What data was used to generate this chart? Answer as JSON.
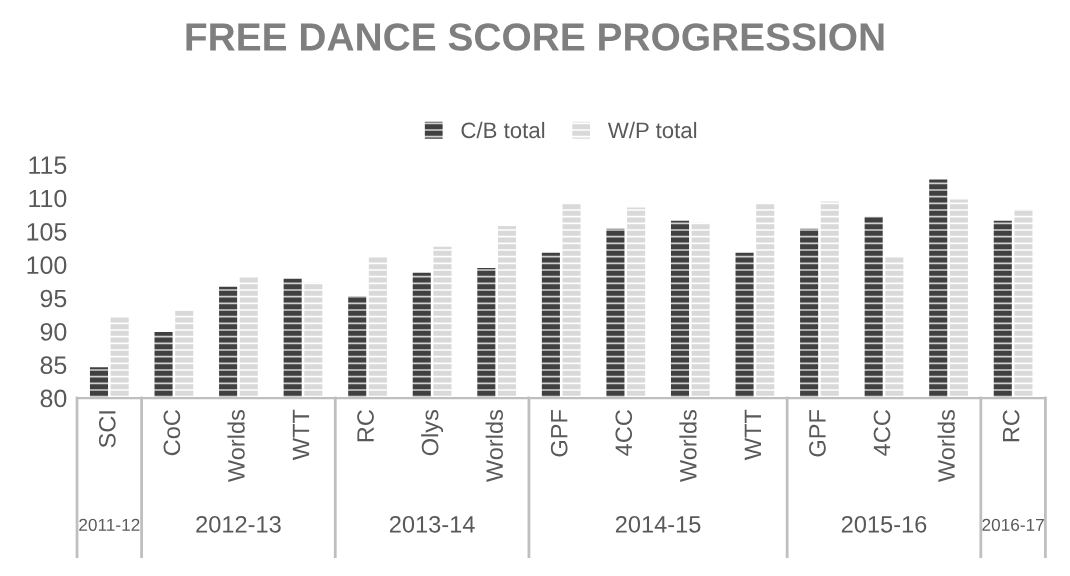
{
  "chart_data": {
    "type": "bar",
    "title": "FREE DANCE SCORE PROGRESSION",
    "categories": [
      "SCI",
      "CoC",
      "Worlds",
      "WTT",
      "RC",
      "Olys",
      "Worlds",
      "GPF",
      "4CC",
      "Worlds",
      "WTT",
      "GPF",
      "4CC",
      "Worlds",
      "RC"
    ],
    "series": [
      {
        "name": "C/B total",
        "color": "#404040",
        "values": [
          84.6,
          89.9,
          96.7,
          97.9,
          95.3,
          98.8,
          99.5,
          101.8,
          105.4,
          106.6,
          101.8,
          105.4,
          107.2,
          112.8,
          106.6
        ]
      },
      {
        "name": "W/P total",
        "color": "#d9d9d9",
        "values": [
          92.3,
          93.1,
          98.2,
          97.3,
          101.2,
          102.7,
          105.8,
          109.2,
          108.6,
          106.3,
          109.2,
          109.5,
          101.2,
          109.8,
          108.3
        ]
      }
    ],
    "annotations": [
      "2011-12",
      "2012-13",
      "2013-14",
      "2014-15",
      "2015-16",
      "2016-17"
    ],
    "ylim": [
      80,
      115
    ],
    "yticks": [
      80,
      85,
      90,
      95,
      100,
      105,
      110,
      115
    ],
    "grid": false,
    "legend": "top"
  }
}
